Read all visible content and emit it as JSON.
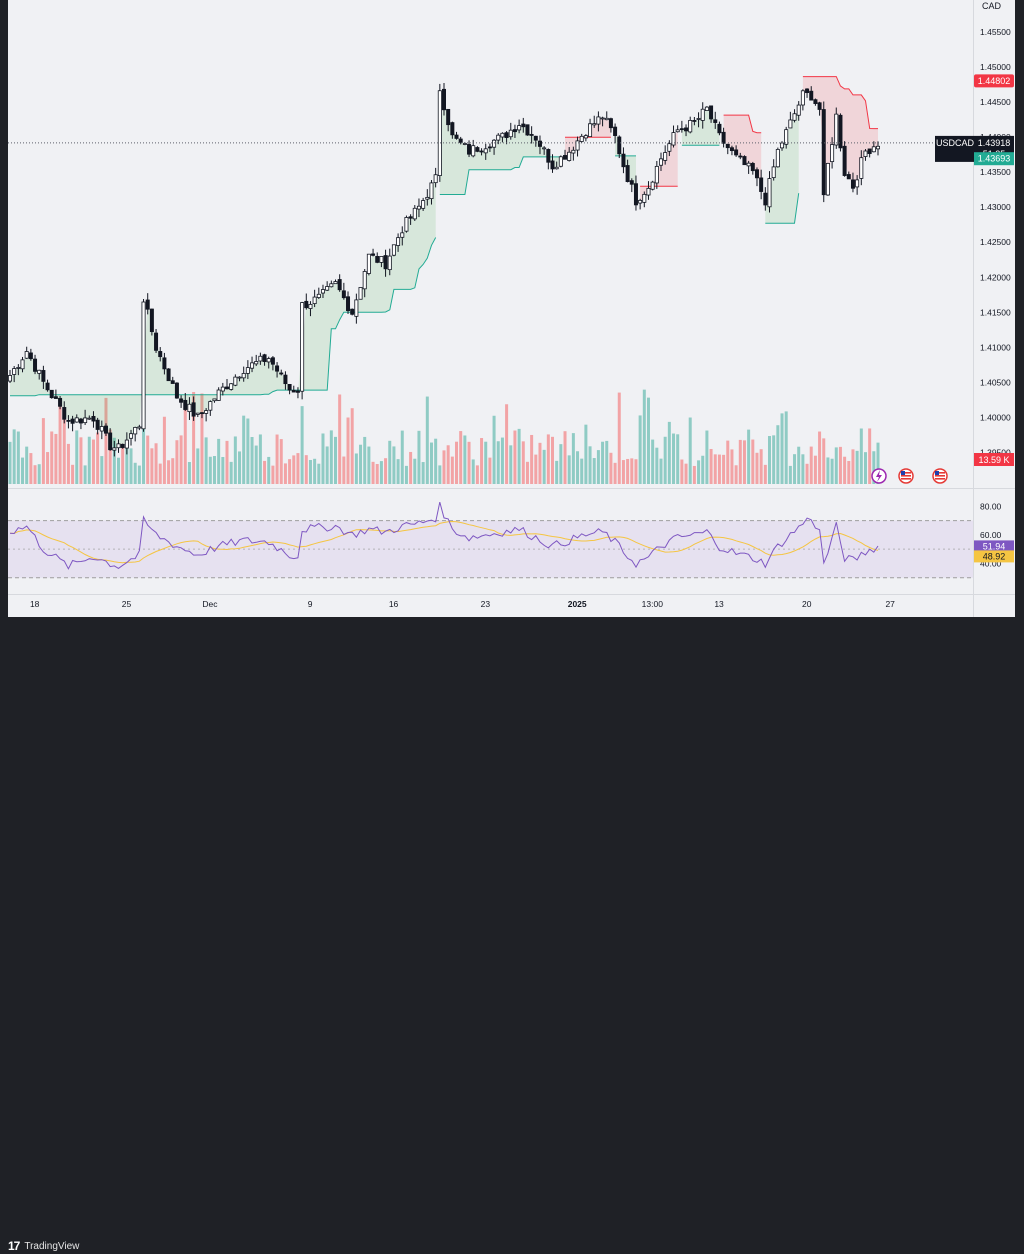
{
  "branding": {
    "logo": "17",
    "name": "TradingView"
  },
  "chart_data": {
    "type": "candlestick",
    "symbol": "USDCAD",
    "currency": "CAD",
    "price_axis": {
      "ticks": [
        "1.45500",
        "1.45000",
        "1.44500",
        "1.44000",
        "1.43500",
        "1.43000",
        "1.42500",
        "1.42000",
        "1.41500",
        "1.41000",
        "1.40500",
        "1.40000",
        "1.39500"
      ],
      "range": [
        1.3905,
        1.459
      ]
    },
    "time_axis_labels": [
      "18",
      "25",
      "Dec",
      "9",
      "16",
      "23",
      "2025",
      "13:00",
      "13",
      "20",
      "27"
    ],
    "last_price": {
      "symbol_label": "USDCAD",
      "price": "1.43918",
      "countdown": "51:25"
    },
    "indicator_labels": {
      "upper_band": "1.44802",
      "lower_band": "1.43693",
      "volume": "13.59 K"
    },
    "rsi": {
      "ticks": [
        "80.00",
        "60.00",
        "40.00"
      ],
      "range": [
        20,
        90
      ],
      "band": [
        30,
        70
      ],
      "midline": 50,
      "value_label": "51.94",
      "ma_label": "48.92",
      "line_color": "#7e57c2",
      "ma_color": "#f5c542"
    },
    "colors": {
      "up": "#089981",
      "down": "#f23645",
      "volume_up": "#8fcbc4",
      "volume_down": "#f2a3a5",
      "rsi_band": "#e6e1f0"
    },
    "series": {
      "anchors": [
        [
          0,
          1.406
        ],
        [
          4,
          1.4095
        ],
        [
          8,
          1.405
        ],
        [
          14,
          1.3995
        ],
        [
          20,
          1.4
        ],
        [
          24,
          1.396
        ],
        [
          26,
          1.3955
        ],
        [
          31,
          1.399
        ],
        [
          32,
          1.417
        ],
        [
          35,
          1.41
        ],
        [
          40,
          1.403
        ],
        [
          45,
          1.4
        ],
        [
          50,
          1.4035
        ],
        [
          56,
          1.407
        ],
        [
          62,
          1.4085
        ],
        [
          67,
          1.404
        ],
        [
          69,
          1.404
        ],
        [
          70,
          1.416
        ],
        [
          74,
          1.417
        ],
        [
          78,
          1.419
        ],
        [
          82,
          1.415
        ],
        [
          86,
          1.423
        ],
        [
          90,
          1.422
        ],
        [
          94,
          1.427
        ],
        [
          98,
          1.43
        ],
        [
          102,
          1.434
        ],
        [
          103,
          1.447
        ],
        [
          106,
          1.44
        ],
        [
          110,
          1.438
        ],
        [
          114,
          1.439
        ],
        [
          118,
          1.44
        ],
        [
          122,
          1.442
        ],
        [
          126,
          1.44
        ],
        [
          130,
          1.436
        ],
        [
          134,
          1.438
        ],
        [
          138,
          1.441
        ],
        [
          142,
          1.443
        ],
        [
          145,
          1.44
        ],
        [
          147,
          1.436
        ],
        [
          150,
          1.431
        ],
        [
          153,
          1.433
        ],
        [
          156,
          1.437
        ],
        [
          160,
          1.441
        ],
        [
          164,
          1.442
        ],
        [
          167,
          1.444
        ],
        [
          170,
          1.44
        ],
        [
          174,
          1.437
        ],
        [
          178,
          1.435
        ],
        [
          181,
          1.431
        ],
        [
          184,
          1.438
        ],
        [
          187,
          1.442
        ],
        [
          190,
          1.446
        ],
        [
          192,
          1.446
        ],
        [
          194,
          1.444
        ],
        [
          195,
          1.431
        ],
        [
          196,
          1.436
        ],
        [
          198,
          1.443
        ],
        [
          200,
          1.435
        ],
        [
          202,
          1.433
        ],
        [
          205,
          1.438
        ],
        [
          208,
          1.4392
        ]
      ],
      "band": [
        [
          0,
          102,
          "up"
        ],
        [
          103,
          132,
          "up"
        ],
        [
          133,
          144,
          "down"
        ],
        [
          145,
          150,
          "up"
        ],
        [
          151,
          160,
          "down"
        ],
        [
          161,
          170,
          "up"
        ],
        [
          171,
          180,
          "down"
        ],
        [
          181,
          189,
          "up"
        ],
        [
          190,
          208,
          "down"
        ]
      ],
      "rsi_anchors": [
        [
          0,
          62
        ],
        [
          4,
          66
        ],
        [
          8,
          50
        ],
        [
          14,
          38
        ],
        [
          20,
          45
        ],
        [
          24,
          40
        ],
        [
          26,
          38
        ],
        [
          31,
          46
        ],
        [
          32,
          70
        ],
        [
          35,
          60
        ],
        [
          40,
          52
        ],
        [
          45,
          46
        ],
        [
          50,
          52
        ],
        [
          56,
          56
        ],
        [
          62,
          55
        ],
        [
          67,
          46
        ],
        [
          69,
          45
        ],
        [
          70,
          64
        ],
        [
          74,
          65
        ],
        [
          78,
          66
        ],
        [
          82,
          60
        ],
        [
          86,
          64
        ],
        [
          90,
          62
        ],
        [
          94,
          66
        ],
        [
          98,
          68
        ],
        [
          102,
          72
        ],
        [
          103,
          80
        ],
        [
          106,
          64
        ],
        [
          110,
          58
        ],
        [
          114,
          60
        ],
        [
          118,
          62
        ],
        [
          122,
          64
        ],
        [
          126,
          58
        ],
        [
          130,
          52
        ],
        [
          134,
          56
        ],
        [
          138,
          60
        ],
        [
          142,
          62
        ],
        [
          145,
          55
        ],
        [
          147,
          48
        ],
        [
          150,
          40
        ],
        [
          153,
          44
        ],
        [
          156,
          52
        ],
        [
          160,
          58
        ],
        [
          164,
          60
        ],
        [
          167,
          62
        ],
        [
          170,
          52
        ],
        [
          174,
          47
        ],
        [
          178,
          44
        ],
        [
          181,
          40
        ],
        [
          184,
          52
        ],
        [
          187,
          60
        ],
        [
          190,
          68
        ],
        [
          192,
          72
        ],
        [
          194,
          62
        ],
        [
          195,
          40
        ],
        [
          196,
          48
        ],
        [
          198,
          66
        ],
        [
          200,
          44
        ],
        [
          202,
          42
        ],
        [
          205,
          48
        ],
        [
          208,
          52
        ]
      ]
    }
  }
}
